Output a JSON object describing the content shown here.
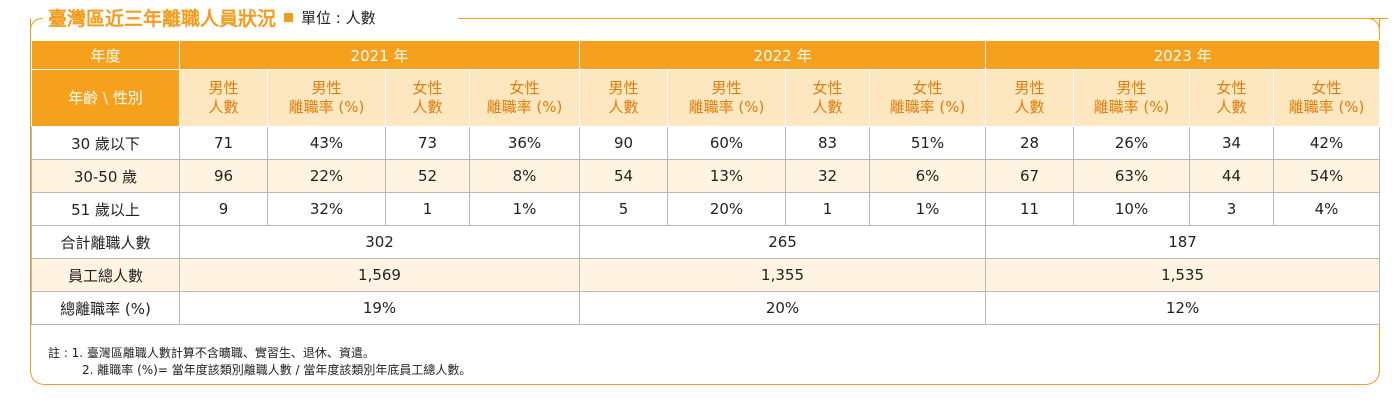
{
  "header": {
    "title": "臺灣區近三年離職人員狀況",
    "unit": "單位 : 人數"
  },
  "table": {
    "year_label": "年度",
    "corner_label": "年齡 \\ 性別",
    "years": [
      "2021 年",
      "2022 年",
      "2023 年"
    ],
    "subheaders": [
      [
        "男性",
        "人數"
      ],
      [
        "男性",
        "離職率 (%)"
      ],
      [
        "女性",
        "人數"
      ],
      [
        "女性",
        "離職率 (%)"
      ]
    ],
    "rows": [
      {
        "label": "30 歲以下",
        "values": [
          "71",
          "43%",
          "73",
          "36%",
          "90",
          "60%",
          "83",
          "51%",
          "28",
          "26%",
          "34",
          "42%"
        ]
      },
      {
        "label": "30-50 歲",
        "values": [
          "96",
          "22%",
          "52",
          "8%",
          "54",
          "13%",
          "32",
          "6%",
          "67",
          "63%",
          "44",
          "54%"
        ]
      },
      {
        "label": "51 歲以上",
        "values": [
          "9",
          "32%",
          "1",
          "1%",
          "5",
          "20%",
          "1",
          "1%",
          "11",
          "10%",
          "3",
          "4%"
        ]
      }
    ],
    "summary_rows": [
      {
        "label": "合計離職人數",
        "values": [
          "302",
          "265",
          "187"
        ]
      },
      {
        "label": "員工總人數",
        "values": [
          "1,569",
          "1,355",
          "1,535"
        ]
      },
      {
        "label": "總離職率 (%)",
        "values": [
          "19%",
          "20%",
          "12%"
        ]
      }
    ]
  },
  "notes": [
    "註 : 1. 臺灣區離職人數計算不含曠職、實習生、退休、資遣。",
    "2. 離職率 (%)= 當年度該類別離職人數 / 當年度該類別年底員工總人數。"
  ],
  "colors": {
    "accent": "#f5a11d",
    "subheader_bg": "#fde7c1",
    "subheader_text": "#e07e0a",
    "alt_row": "#fff4e2"
  }
}
